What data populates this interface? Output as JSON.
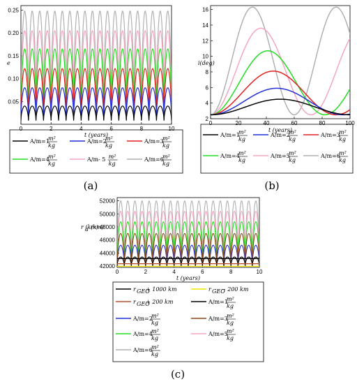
{
  "chart_data": [
    {
      "panel": "a",
      "type": "line",
      "xlabel": "t (years)",
      "ylabel": "e",
      "xlim": [
        0,
        10
      ],
      "ylim": [
        0,
        0.26
      ],
      "xticks": [
        0,
        2,
        4,
        6,
        8,
        10
      ],
      "yticks": [
        0.05,
        0.1,
        0.15,
        0.2,
        0.25
      ],
      "ytick_labels": [
        "0.05",
        "0.10",
        "0.15",
        "0.20",
        "0.25"
      ],
      "period": 0.5,
      "series": [
        {
          "name": "A/m=1",
          "unit": "m²/kg",
          "color": "#000000",
          "min": 0.008,
          "max": 0.04
        },
        {
          "name": "A/m=2",
          "unit": "m²/kg",
          "color": "#1f2fd6",
          "min": 0.012,
          "max": 0.08
        },
        {
          "name": "A/m=3",
          "unit": "m²/kg",
          "color": "#e02020",
          "min": 0.016,
          "max": 0.122
        },
        {
          "name": "A/m=4",
          "unit": "m²/kg",
          "color": "#22dd22",
          "min": 0.022,
          "max": 0.165
        },
        {
          "name": "A/m- 5",
          "unit": "m²/kg",
          "color": "#f4a6c0",
          "min": 0.026,
          "max": 0.205
        },
        {
          "name": "A/m=6",
          "unit": "m²/kg",
          "color": "#b0b0b0",
          "min": 0.03,
          "max": 0.248
        }
      ],
      "caption": "(a)"
    },
    {
      "panel": "b",
      "type": "line",
      "xlabel": "t (years)",
      "ylabel": "i(deg)",
      "xlim": [
        0,
        100
      ],
      "ylim": [
        2,
        16.5
      ],
      "xticks": [
        0,
        20,
        40,
        60,
        80,
        100
      ],
      "yticks": [
        2,
        4,
        6,
        8,
        10,
        12,
        14,
        16
      ],
      "ytick_labels": [
        "2",
        "4",
        "6",
        "8",
        "10",
        "12",
        "14",
        "16"
      ],
      "series": [
        {
          "name": "A/m=1",
          "unit": "m²/kg",
          "color": "#000000",
          "min": 2.5,
          "max": 4.5,
          "period": 100
        },
        {
          "name": "A/m=2",
          "unit": "m²/kg",
          "color": "#1f2fd6",
          "min": 2.5,
          "max": 5.9,
          "period": 95
        },
        {
          "name": "A/m=3",
          "unit": "m²/kg",
          "color": "#e02020",
          "min": 2.5,
          "max": 8.1,
          "period": 90
        },
        {
          "name": "A/m=4",
          "unit": "m²/kg",
          "color": "#22dd22",
          "min": 2.5,
          "max": 10.7,
          "period": 82
        },
        {
          "name": "A/m=5",
          "unit": "m²/kg",
          "color": "#f4a6c0",
          "min": 2.5,
          "max": 13.6,
          "period": 72
        },
        {
          "name": "A/m=6",
          "unit": "m²/kg",
          "color": "#b0b0b0",
          "min": 2.5,
          "max": 16.3,
          "period": 60
        }
      ],
      "caption": "(b)"
    },
    {
      "panel": "c",
      "type": "line",
      "xlabel": "t (years)",
      "ylabel": "r_a (km)",
      "xlim": [
        0,
        10
      ],
      "ylim": [
        41800,
        52500
      ],
      "xticks": [
        0,
        2,
        4,
        6,
        8,
        10
      ],
      "yticks": [
        42000,
        44000,
        46000,
        48000,
        50000,
        52000
      ],
      "ytick_labels": [
        "42000",
        "44000",
        "46000",
        "48000",
        "50000",
        "52000"
      ],
      "period": 0.5,
      "reference_lines": [
        {
          "name": "r_GEO + 1000 km",
          "color": "#000000",
          "value": 43164
        },
        {
          "name": "r_GEO − 200 km",
          "color": "#f2e600",
          "value": 41964
        },
        {
          "name": "r_GEO + 200 km",
          "color": "#b5502a",
          "value": 42364
        }
      ],
      "series": [
        {
          "name": "A/m=1",
          "unit": "m²/kg",
          "color": "#000000",
          "min": 42000,
          "max": 43400
        },
        {
          "name": "A/m=3",
          "unit": "m²/kg",
          "color": "#8b4513",
          "min": 42000,
          "max": 47000
        },
        {
          "name": "A/m=2",
          "unit": "m²/kg",
          "color": "#1f2fd6",
          "min": 42000,
          "max": 45200
        },
        {
          "name": "A/m=4",
          "unit": "m²/kg",
          "color": "#22dd22",
          "min": 42000,
          "max": 48800
        },
        {
          "name": "A/m=5",
          "unit": "m²/kg",
          "color": "#f4a6c0",
          "min": 42000,
          "max": 50400
        },
        {
          "name": "A/m=6",
          "unit": "m²/kg",
          "color": "#b0b0b0",
          "min": 42000,
          "max": 52000
        }
      ],
      "caption": "(c)"
    }
  ]
}
